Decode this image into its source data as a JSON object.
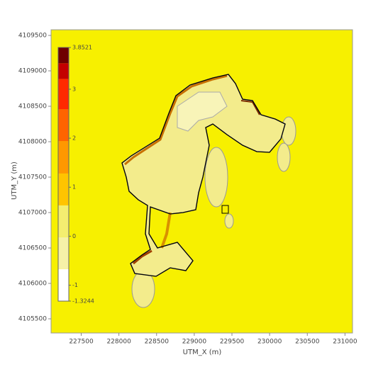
{
  "chart_data": {
    "type": "contour",
    "xlabel": "UTM_X (m)",
    "ylabel": "UTM_Y (m)",
    "xlim": [
      227100,
      231100
    ],
    "ylim": [
      4105300,
      4109580
    ],
    "xticks": [
      227500,
      228000,
      228500,
      229000,
      229500,
      230000,
      230500,
      231000
    ],
    "yticks": [
      4105500,
      4106000,
      4106500,
      4107000,
      4107500,
      4108000,
      4108500,
      4109000,
      4109500
    ],
    "background": "#f7f000",
    "colorbar": {
      "levels": [
        -1.3244,
        -0.67,
        -0.02,
        0.63,
        1.28,
        1.94,
        2.59,
        3.21,
        3.53,
        3.8521
      ],
      "colors": [
        "#ffffff",
        "#f6f1a8",
        "#f4ee70",
        "#ffc400",
        "#ff9800",
        "#ff6400",
        "#ff2a00",
        "#c40000",
        "#6e0000"
      ],
      "ticks": [
        3.8521,
        3,
        2,
        1,
        0,
        -1,
        -1.3244
      ]
    }
  }
}
